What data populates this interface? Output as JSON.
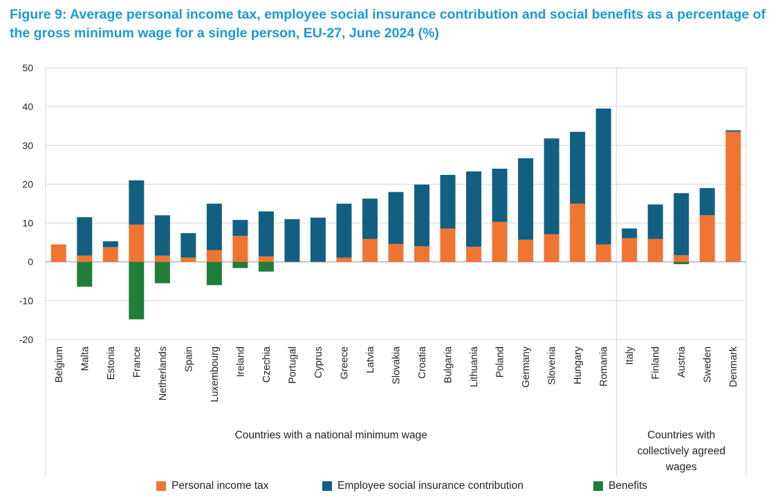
{
  "title": "Figure 9: Average personal income tax, employee social insurance contribution and social benefits as a percentage of the gross minimum wage for a single person, EU-27, June 2024 (%)",
  "colors": {
    "tax": "#f07533",
    "social": "#135f82",
    "benefits": "#217d3a",
    "grid": "#d6d6d6",
    "title": "#1a9ad6"
  },
  "chart_data": {
    "type": "bar",
    "stacked": true,
    "title": "Figure 9: Average personal income tax, employee social insurance contribution and social benefits as a percentage of the gross minimum wage for a single person, EU-27, June 2024 (%)",
    "ylim": [
      -20,
      50
    ],
    "yticks": [
      50,
      40,
      30,
      20,
      10,
      0,
      -10,
      -20
    ],
    "grid": true,
    "legend_position": "bottom",
    "categories": [
      "Belgium",
      "Malta",
      "Estonia",
      "France",
      "Netherlands",
      "Spain",
      "Luxembourg",
      "Ireland",
      "Czechia",
      "Portugal",
      "Cyprus",
      "Greece",
      "Latvia",
      "Slovakia",
      "Croatia",
      "Bulgaria",
      "Lithuania",
      "Poland",
      "Germany",
      "Slovenia",
      "Hungary",
      "Romania",
      "Italy",
      "Finland",
      "Austria",
      "Sweden",
      "Denmark"
    ],
    "series": [
      {
        "name": "Personal income tax",
        "values": [
          4.5,
          1.6,
          3.8,
          9.6,
          1.6,
          1.1,
          3.0,
          6.7,
          1.4,
          0.0,
          0.0,
          1.1,
          5.9,
          4.6,
          4.0,
          8.6,
          3.9,
          10.3,
          5.7,
          7.1,
          15.0,
          4.5,
          6.1,
          5.9,
          1.7,
          12.0,
          33.5
        ]
      },
      {
        "name": "Employee social insurance contribution",
        "values": [
          0.0,
          9.9,
          1.5,
          11.4,
          10.4,
          6.3,
          12.0,
          4.1,
          11.6,
          11.0,
          11.4,
          13.9,
          10.4,
          13.4,
          15.9,
          13.8,
          19.4,
          13.7,
          21.0,
          24.7,
          18.5,
          35.0,
          2.5,
          8.9,
          16.0,
          7.0,
          0.4
        ]
      },
      {
        "name": "Benefits",
        "values": [
          0.0,
          -6.4,
          0.0,
          -14.8,
          -5.5,
          0.0,
          -6.0,
          -1.6,
          -2.5,
          0.0,
          0.0,
          0.0,
          0.0,
          0.0,
          0.0,
          0.0,
          0.0,
          0.0,
          0.0,
          0.0,
          0.0,
          0.0,
          0.0,
          0.0,
          -0.6,
          0.0,
          0.0
        ]
      }
    ],
    "groups": [
      {
        "label": "Countries with a national minimum wage",
        "count": 22
      },
      {
        "label": "Countries with collectively agreed wages",
        "count": 5
      }
    ]
  },
  "legend": [
    {
      "label": "Personal income tax",
      "color": "#f07533"
    },
    {
      "label": "Employee social insurance contribution",
      "color": "#135f82"
    },
    {
      "label": "Benefits",
      "color": "#217d3a"
    }
  ]
}
